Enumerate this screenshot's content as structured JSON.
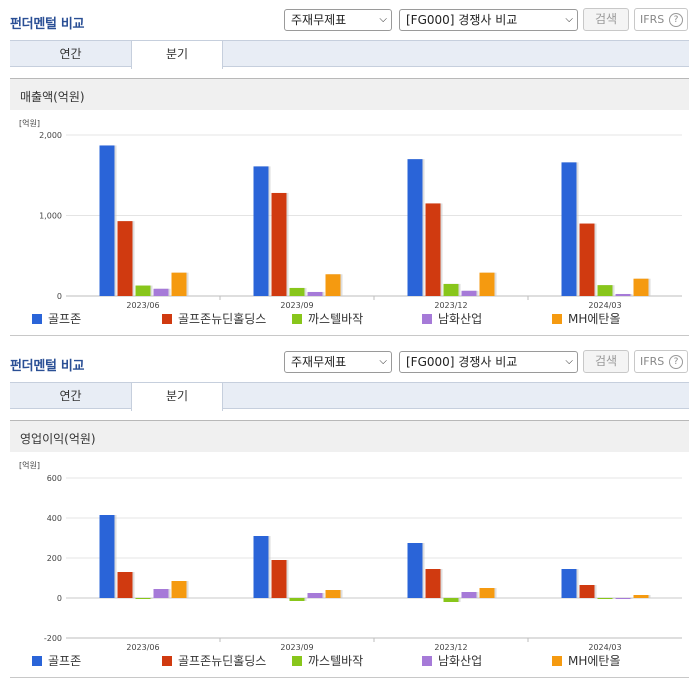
{
  "panels": [
    {
      "title": "펀더멘털 비교",
      "select_statement": "주재무제표",
      "select_compare": "[FG000] 경쟁사 비교",
      "search_label": "검색",
      "ifrs_label": "IFRS",
      "help_symbol": "?",
      "tabs": [
        "연간",
        "분기"
      ],
      "active_tab": 1,
      "chart_title": "매출액(억원)"
    },
    {
      "title": "펀더멘털 비교",
      "select_statement": "주재무제표",
      "select_compare": "[FG000] 경쟁사 비교",
      "search_label": "검색",
      "ifrs_label": "IFRS",
      "help_symbol": "?",
      "tabs": [
        "연간",
        "분기"
      ],
      "active_tab": 1,
      "chart_title": "영업이익(억원)"
    }
  ],
  "chart_data": [
    {
      "type": "bar",
      "title": "매출액(억원)",
      "unit_label": "[억원]",
      "categories": [
        "2023/06",
        "2023/09",
        "2023/12",
        "2024/03"
      ],
      "ylim": [
        0,
        2000
      ],
      "yticks": [
        0,
        1000,
        2000
      ],
      "ytick_labels": [
        "0",
        "1,000",
        "2,000"
      ],
      "grid": true,
      "legend": "bottom",
      "series": [
        {
          "name": "골프존",
          "color": "#2a64d8",
          "values": [
            1870,
            1610,
            1700,
            1660
          ]
        },
        {
          "name": "골프존뉴딘홀딩스",
          "color": "#d03a10",
          "values": [
            930,
            1280,
            1150,
            900
          ]
        },
        {
          "name": "까스텔바작",
          "color": "#88c61b",
          "values": [
            130,
            100,
            150,
            135
          ]
        },
        {
          "name": "남화산업",
          "color": "#a67ad8",
          "values": [
            90,
            50,
            65,
            25
          ]
        },
        {
          "name": "MH에탄올",
          "color": "#f59a10",
          "values": [
            290,
            270,
            290,
            215
          ]
        }
      ]
    },
    {
      "type": "bar",
      "title": "영업이익(억원)",
      "unit_label": "[억원]",
      "categories": [
        "2023/06",
        "2023/09",
        "2023/12",
        "2024/03"
      ],
      "ylim": [
        -200,
        600
      ],
      "yticks": [
        -200,
        0,
        200,
        400,
        600
      ],
      "ytick_labels": [
        "-200",
        "0",
        "200",
        "400",
        "600"
      ],
      "grid": true,
      "legend": "bottom",
      "series": [
        {
          "name": "골프존",
          "color": "#2a64d8",
          "values": [
            415,
            310,
            275,
            145
          ]
        },
        {
          "name": "골프존뉴딘홀딩스",
          "color": "#d03a10",
          "values": [
            130,
            190,
            145,
            65
          ]
        },
        {
          "name": "까스텔바작",
          "color": "#88c61b",
          "values": [
            0,
            -15,
            -20,
            -5
          ]
        },
        {
          "name": "남화산업",
          "color": "#a67ad8",
          "values": [
            45,
            25,
            30,
            -5
          ]
        },
        {
          "name": "MH에탄올",
          "color": "#f59a10",
          "values": [
            85,
            40,
            50,
            15
          ]
        }
      ]
    }
  ]
}
